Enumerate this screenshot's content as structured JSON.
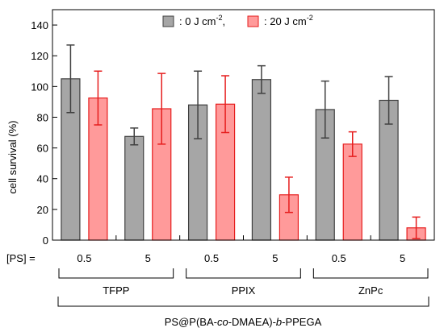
{
  "chart_data": {
    "type": "bar",
    "ylabel": "cell survival (%)",
    "ylim": [
      0,
      150
    ],
    "yticks": [
      0,
      20,
      40,
      60,
      80,
      100,
      120,
      140
    ],
    "grid": false,
    "legend_position": "top",
    "row_label": "[PS] =",
    "categories": [
      "0.5",
      "5",
      "0.5",
      "5",
      "0.5",
      "5"
    ],
    "groups": [
      {
        "label": "TFPP",
        "categories": [
          0,
          1
        ]
      },
      {
        "label": "PPIX",
        "categories": [
          2,
          3
        ]
      },
      {
        "label": "ZnPc",
        "categories": [
          4,
          5
        ]
      }
    ],
    "group_label_prefix": "PS@P(BA-",
    "group_label_italic1": "co",
    "group_label_middle": "-DMAEA)-",
    "group_label_italic2": "b",
    "group_label_suffix": "-PPEGA",
    "series": [
      {
        "name_prefix": ": 0 J cm",
        "name_exponent": "-2",
        "name_suffix": ",",
        "values": [
          105,
          67.5,
          88,
          104.5,
          85,
          91
        ],
        "errors": [
          22,
          5.5,
          22,
          9,
          18.5,
          15.5
        ],
        "fill": "#a6a6a6",
        "stroke": "#404040"
      },
      {
        "name_prefix": ": 20 J cm",
        "name_exponent": "-2",
        "name_suffix": "",
        "values": [
          92.5,
          85.5,
          88.5,
          29.5,
          62.5,
          8
        ],
        "errors": [
          17.5,
          23,
          18.5,
          11.5,
          8,
          7
        ],
        "fill": "#ff9a9a",
        "stroke": "#e61e1e"
      }
    ]
  }
}
